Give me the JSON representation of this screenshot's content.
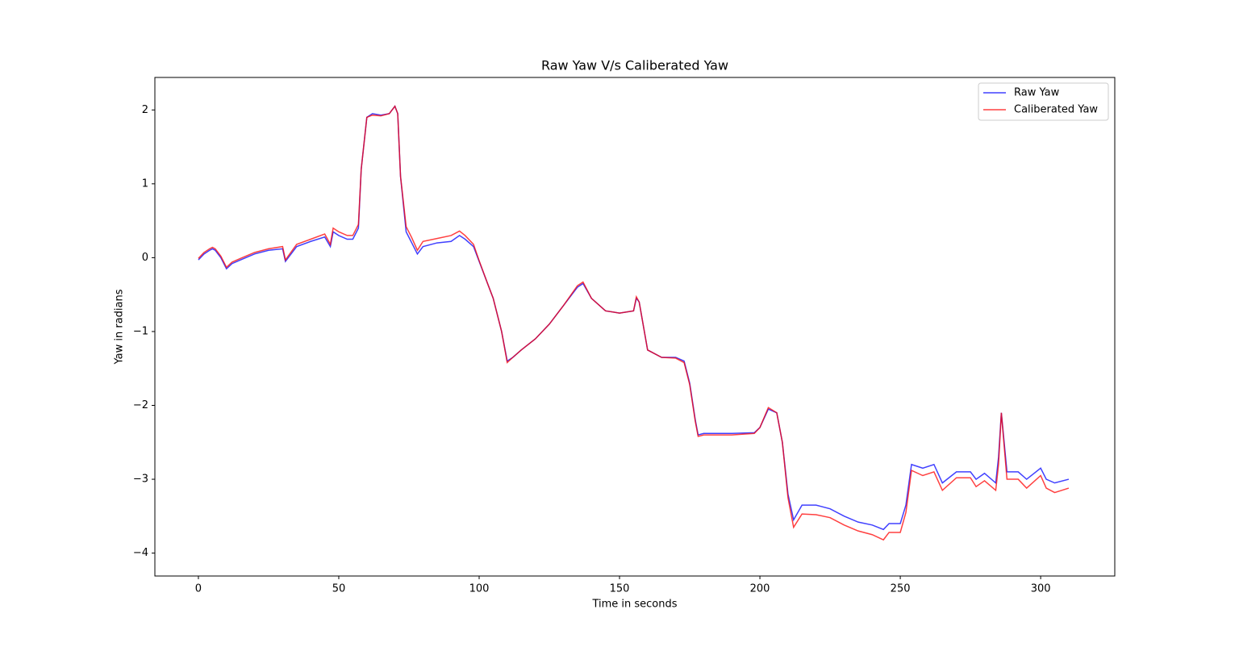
{
  "chart_data": {
    "type": "line",
    "title": "Raw Yaw V/s Caliberated Yaw",
    "x_label": "Time in seconds",
    "y_label": "Yaw in radians",
    "x": [
      0,
      2,
      4,
      5,
      6,
      8,
      10,
      12,
      15,
      20,
      25,
      30,
      31,
      35,
      40,
      45,
      47,
      48,
      50,
      53,
      55,
      57,
      58,
      60,
      62,
      65,
      68,
      70,
      71,
      72,
      74,
      76,
      78,
      80,
      85,
      90,
      93,
      95,
      98,
      100,
      103,
      105,
      108,
      110,
      112,
      115,
      120,
      125,
      130,
      135,
      137,
      140,
      145,
      150,
      155,
      156,
      157,
      160,
      165,
      170,
      173,
      175,
      177,
      178,
      180,
      190,
      198,
      200,
      203,
      206,
      208,
      210,
      212,
      215,
      220,
      225,
      230,
      235,
      240,
      244,
      246,
      250,
      252,
      254,
      258,
      262,
      265,
      270,
      275,
      277,
      280,
      284,
      285,
      286,
      288,
      292,
      295,
      300,
      302,
      305,
      310
    ],
    "series": [
      {
        "name": "Raw Yaw",
        "color": "#0000ff",
        "values": [
          -0.03,
          0.05,
          0.1,
          0.12,
          0.1,
          0.0,
          -0.15,
          -0.08,
          -0.03,
          0.05,
          0.1,
          0.12,
          -0.05,
          0.15,
          0.22,
          0.28,
          0.15,
          0.35,
          0.3,
          0.25,
          0.25,
          0.4,
          1.2,
          1.9,
          1.95,
          1.93,
          1.95,
          2.05,
          1.95,
          1.1,
          0.35,
          0.2,
          0.05,
          0.15,
          0.2,
          0.22,
          0.3,
          0.25,
          0.15,
          -0.05,
          -0.35,
          -0.55,
          -1.0,
          -1.4,
          -1.35,
          -1.25,
          -1.1,
          -0.9,
          -0.65,
          -0.4,
          -0.35,
          -0.55,
          -0.72,
          -0.75,
          -0.72,
          -0.55,
          -0.6,
          -1.25,
          -1.35,
          -1.35,
          -1.4,
          -1.7,
          -2.2,
          -2.4,
          -2.38,
          -2.38,
          -2.37,
          -2.3,
          -2.05,
          -2.1,
          -2.5,
          -3.2,
          -3.55,
          -3.35,
          -3.35,
          -3.4,
          -3.5,
          -3.58,
          -3.62,
          -3.68,
          -3.6,
          -3.6,
          -3.35,
          -2.8,
          -2.85,
          -2.8,
          -3.05,
          -2.9,
          -2.9,
          -3.0,
          -2.92,
          -3.05,
          -2.7,
          -2.1,
          -2.9,
          -2.9,
          -3.0,
          -2.85,
          -3.0,
          -3.05,
          -3.0
        ]
      },
      {
        "name": "Caliberated Yaw",
        "color": "#ff0000",
        "values": [
          -0.01,
          0.07,
          0.12,
          0.14,
          0.12,
          0.02,
          -0.13,
          -0.06,
          -0.01,
          0.07,
          0.12,
          0.15,
          -0.03,
          0.18,
          0.25,
          0.32,
          0.18,
          0.4,
          0.35,
          0.3,
          0.3,
          0.45,
          1.2,
          1.9,
          1.93,
          1.92,
          1.95,
          2.05,
          1.95,
          1.1,
          0.42,
          0.27,
          0.1,
          0.22,
          0.26,
          0.3,
          0.36,
          0.3,
          0.18,
          -0.04,
          -0.35,
          -0.55,
          -1.0,
          -1.42,
          -1.35,
          -1.25,
          -1.1,
          -0.9,
          -0.65,
          -0.38,
          -0.33,
          -0.55,
          -0.72,
          -0.75,
          -0.72,
          -0.53,
          -0.6,
          -1.25,
          -1.35,
          -1.36,
          -1.42,
          -1.72,
          -2.22,
          -2.42,
          -2.4,
          -2.4,
          -2.38,
          -2.3,
          -2.03,
          -2.1,
          -2.5,
          -3.25,
          -3.65,
          -3.47,
          -3.48,
          -3.52,
          -3.62,
          -3.7,
          -3.75,
          -3.82,
          -3.72,
          -3.72,
          -3.45,
          -2.88,
          -2.95,
          -2.9,
          -3.15,
          -2.98,
          -2.98,
          -3.1,
          -3.02,
          -3.15,
          -2.8,
          -2.1,
          -3.0,
          -3.0,
          -3.12,
          -2.95,
          -3.12,
          -3.18,
          -3.12
        ]
      }
    ],
    "xlim": [
      -15.5,
      326.4
    ],
    "ylim": [
      -4.31,
      2.44
    ],
    "xticks": [
      0,
      50,
      100,
      150,
      200,
      250,
      300
    ],
    "yticks": [
      {
        "value": -4,
        "label": "−4"
      },
      {
        "value": -3,
        "label": "−3"
      },
      {
        "value": -2,
        "label": "−2"
      },
      {
        "value": -1,
        "label": "−1"
      },
      0,
      1,
      2
    ],
    "legend": "upper right"
  }
}
